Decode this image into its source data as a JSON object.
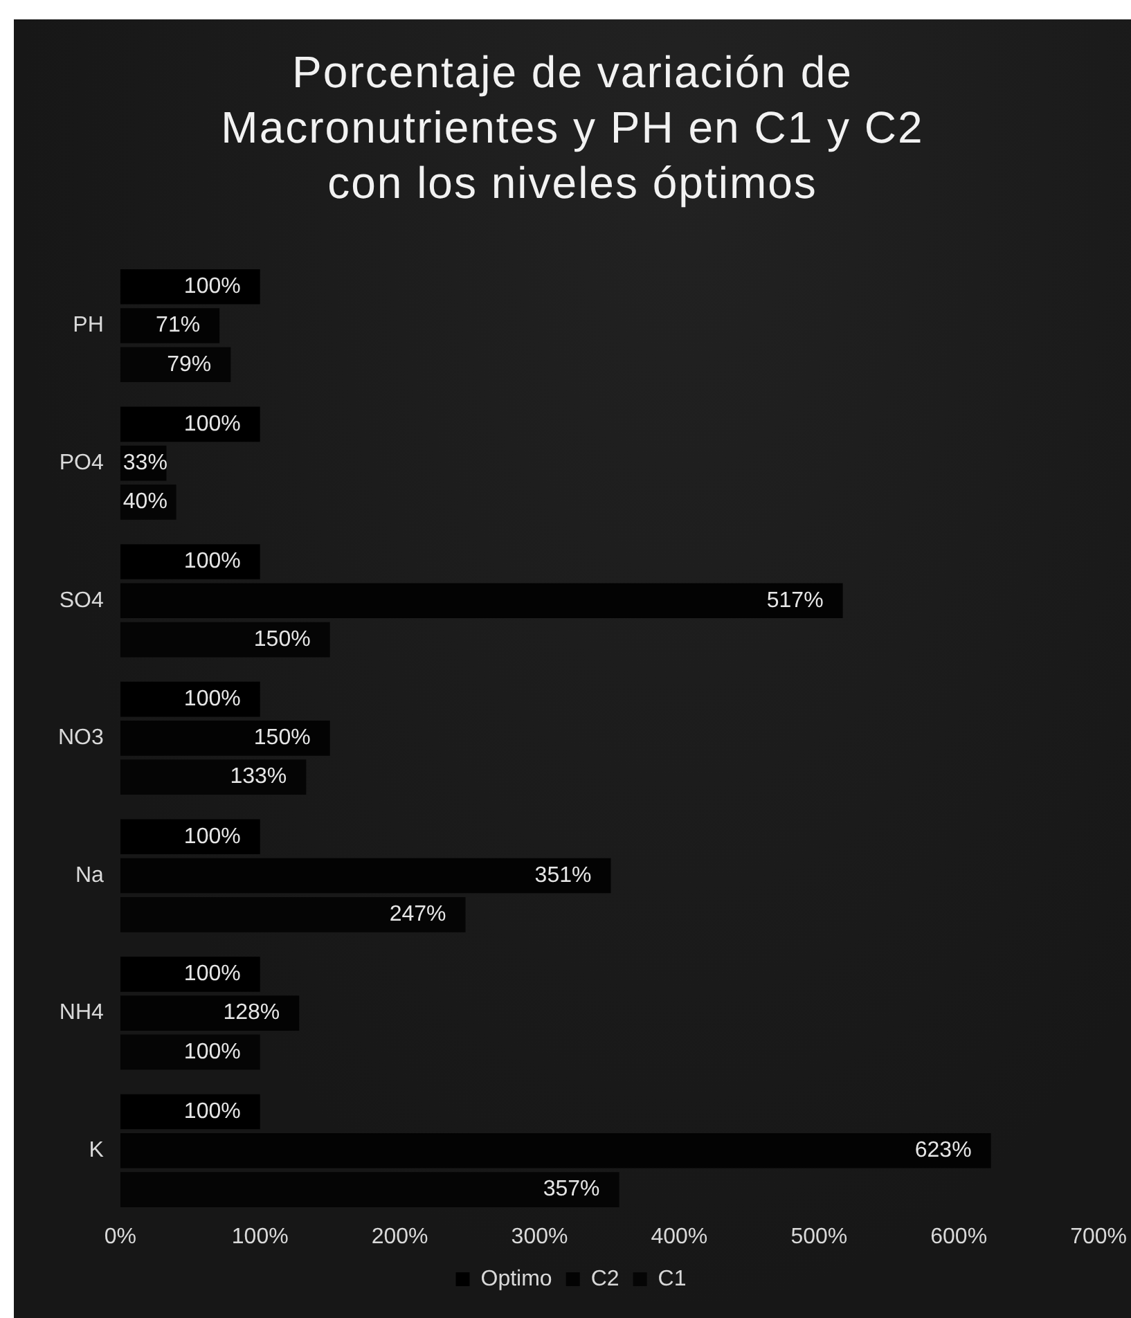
{
  "chart_data": {
    "type": "bar",
    "orientation": "horizontal",
    "title": "Porcentaje de variación de Macronutrientes y PH en C1 y C2 con los niveles óptimos",
    "categories": [
      "PH",
      "PO4",
      "SO4",
      "NO3",
      "Na",
      "NH4",
      "K"
    ],
    "series": [
      {
        "name": "Optimo",
        "color": "#000000",
        "values": [
          100,
          100,
          100,
          100,
          100,
          100,
          100
        ],
        "value_labels": [
          "100%",
          "100%",
          "100%",
          "100%",
          "100%",
          "100%",
          "100%"
        ]
      },
      {
        "name": "C2",
        "color": "#030303",
        "values": [
          71,
          33,
          517,
          150,
          351,
          128,
          623
        ],
        "value_labels": [
          "71%",
          "33%",
          "517%",
          "150%",
          "351%",
          "128%",
          "623%"
        ]
      },
      {
        "name": "C1",
        "color": "#050505",
        "values": [
          79,
          40,
          150,
          133,
          247,
          100,
          357
        ],
        "value_labels": [
          "79%",
          "40%",
          "150%",
          "133%",
          "247%",
          "100%",
          "357%"
        ]
      }
    ],
    "xlim": [
      0,
      700
    ],
    "xticks": [
      {
        "value": 0,
        "label": "0%"
      },
      {
        "value": 100,
        "label": "100%"
      },
      {
        "value": 200,
        "label": "200%"
      },
      {
        "value": 300,
        "label": "300%"
      },
      {
        "value": 400,
        "label": "400%"
      },
      {
        "value": 500,
        "label": "500%"
      },
      {
        "value": 600,
        "label": "600%"
      },
      {
        "value": 700,
        "label": "700%"
      }
    ],
    "grid": false,
    "legend": "bottom"
  }
}
